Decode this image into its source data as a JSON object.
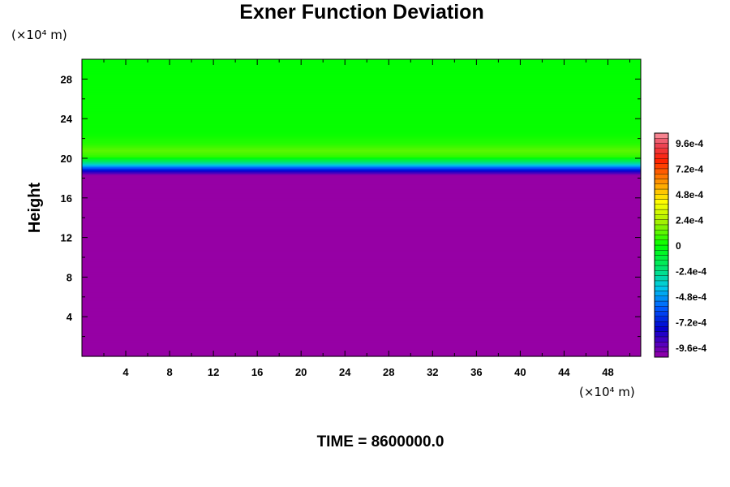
{
  "chart_data": {
    "type": "heatmap",
    "title": "Exner Function Deviation",
    "ylabel": "Height",
    "x_unit": "(×10⁴ m)",
    "y_unit": "(×10⁴ m)",
    "xlim": [
      0,
      51
    ],
    "ylim": [
      0,
      30
    ],
    "x_ticks": [
      "4",
      "8",
      "12",
      "16",
      "20",
      "24",
      "28",
      "32",
      "36",
      "40",
      "44",
      "48"
    ],
    "y_ticks": [
      "4",
      "8",
      "12",
      "16",
      "20",
      "24",
      "28"
    ],
    "x_tick_values": [
      4,
      8,
      12,
      16,
      20,
      24,
      28,
      32,
      36,
      40,
      44,
      48
    ],
    "y_tick_values": [
      4,
      8,
      12,
      16,
      20,
      24,
      28
    ],
    "colorbar": {
      "range": [
        -0.00105,
        0.00105
      ],
      "tick_labels": [
        "9.6e-4",
        "7.2e-4",
        "4.8e-4",
        "2.4e-4",
        "0",
        "-2.4e-4",
        "-4.8e-4",
        "-7.2e-4",
        "-9.6e-4"
      ],
      "tick_values": [
        0.00096,
        0.00072,
        0.00048,
        0.00024,
        0,
        -0.00024,
        -0.00048,
        -0.00072,
        -0.00096
      ]
    },
    "vertical_profile": [
      {
        "height": 0,
        "value": -0.00105
      },
      {
        "height": 18.3,
        "value": -0.00105
      },
      {
        "height": 18.6,
        "value": -0.00088
      },
      {
        "height": 18.9,
        "value": -0.0007
      },
      {
        "height": 19.2,
        "value": -0.0005
      },
      {
        "height": 19.5,
        "value": -0.0003
      },
      {
        "height": 19.8,
        "value": -0.00015
      },
      {
        "height": 20.2,
        "value": 6e-05
      },
      {
        "height": 20.8,
        "value": 0.00012
      },
      {
        "height": 21.5,
        "value": 5e-05
      },
      {
        "height": 22.5,
        "value": 1e-05
      },
      {
        "height": 30,
        "value": 0
      }
    ],
    "time_label": "TIME = 8600000.0"
  }
}
